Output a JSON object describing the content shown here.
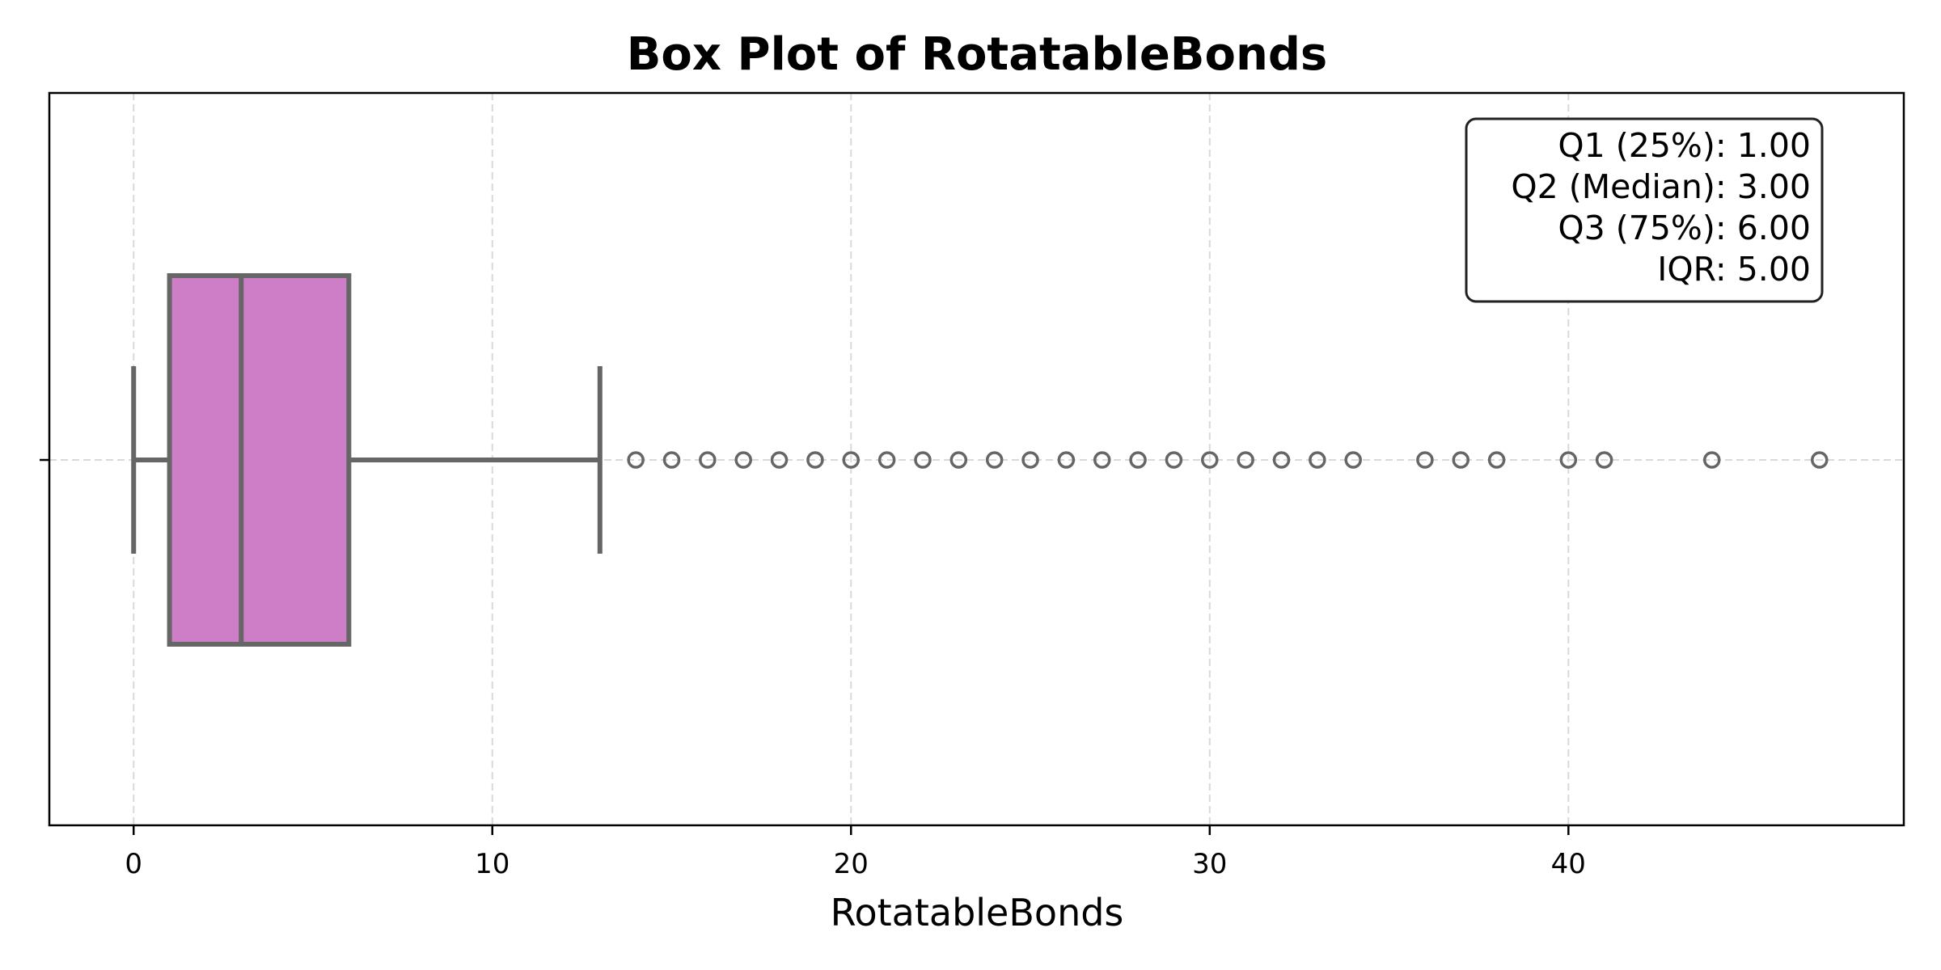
{
  "chart_data": {
    "type": "box",
    "title": "Box Plot of RotatableBonds",
    "xlabel": "RotatableBonds",
    "ylabel": "",
    "orientation": "horizontal",
    "xlim": [
      -2.35,
      49.35
    ],
    "xticks": [
      0,
      10,
      20,
      30,
      40
    ],
    "xtick_labels": [
      "0",
      "10",
      "20",
      "30",
      "40"
    ],
    "grid": true,
    "box": {
      "whisker_low": 0,
      "q1": 1,
      "median": 3,
      "q3": 6,
      "whisker_high": 13,
      "outliers": [
        14,
        15,
        16,
        17,
        18,
        19,
        20,
        21,
        22,
        23,
        24,
        25,
        26,
        27,
        28,
        29,
        30,
        31,
        32,
        33,
        34,
        36,
        37,
        38,
        40,
        41,
        44,
        47
      ]
    },
    "stats_box": {
      "position": "top-right",
      "lines": [
        "Q1 (25%): 1.00",
        "Q2 (Median): 3.00",
        "Q3 (75%): 6.00",
        "IQR: 5.00"
      ]
    },
    "colors": {
      "box_fill": "#cd7ec7",
      "box_edge": "#666666",
      "grid": "#d9d9d9",
      "axes": "#000000"
    }
  }
}
